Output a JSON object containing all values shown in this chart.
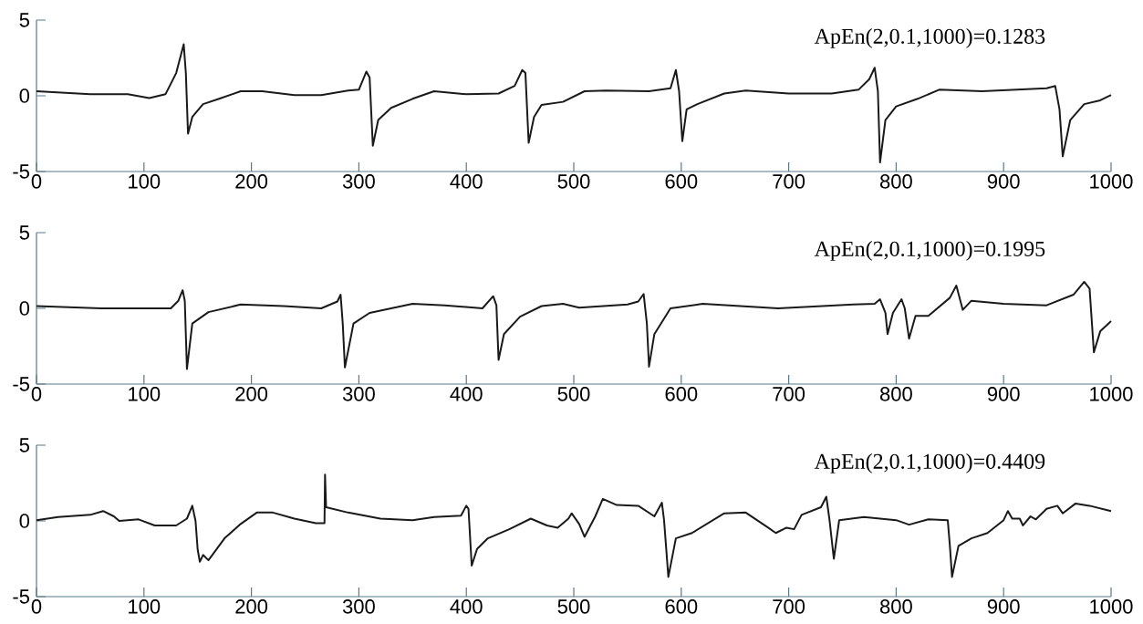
{
  "chart_data": [
    {
      "type": "line",
      "color": "#1a1a1a",
      "xlim": [
        0,
        1000
      ],
      "ylim": [
        -5,
        5
      ],
      "xticks": [
        0,
        100,
        200,
        300,
        400,
        500,
        600,
        700,
        800,
        900,
        1000
      ],
      "yticks": [
        -5,
        0,
        5
      ],
      "annotations": [
        "ApEn(2,0.1,1000)=0.1283"
      ],
      "x": [
        0,
        50,
        85,
        105,
        120,
        130,
        137,
        139,
        141,
        145,
        155,
        170,
        190,
        210,
        240,
        265,
        290,
        300,
        307,
        310,
        313,
        318,
        330,
        350,
        370,
        400,
        430,
        445,
        452,
        455,
        458,
        463,
        470,
        490,
        510,
        530,
        570,
        590,
        595,
        598,
        601,
        605,
        615,
        640,
        660,
        700,
        740,
        765,
        775,
        780,
        783,
        785,
        790,
        800,
        820,
        840,
        880,
        940,
        948,
        952,
        955,
        962,
        975,
        990,
        1000
      ],
      "values": [
        0.3,
        0.1,
        0.1,
        -0.15,
        0.1,
        1.5,
        3.4,
        1.5,
        -2.5,
        -1.4,
        -0.55,
        -0.2,
        0.3,
        0.3,
        0.05,
        0.05,
        0.35,
        0.4,
        1.6,
        1.2,
        -3.3,
        -1.6,
        -0.8,
        -0.2,
        0.3,
        0.1,
        0.15,
        0.65,
        1.7,
        1.5,
        -3.1,
        -1.4,
        -0.6,
        -0.4,
        0.3,
        0.35,
        0.3,
        0.5,
        1.7,
        0.3,
        -3.0,
        -0.9,
        -0.55,
        0.15,
        0.35,
        0.15,
        0.15,
        0.4,
        1.1,
        1.85,
        0.3,
        -4.4,
        -1.6,
        -0.7,
        -0.2,
        0.4,
        0.3,
        0.5,
        0.65,
        -0.9,
        -4.0,
        -1.6,
        -0.55,
        -0.3,
        0.05
      ]
    },
    {
      "type": "line",
      "color": "#1a1a1a",
      "xlim": [
        0,
        1000
      ],
      "ylim": [
        -5,
        5
      ],
      "xticks": [
        0,
        100,
        200,
        300,
        400,
        500,
        600,
        700,
        800,
        900,
        1000
      ],
      "yticks": [
        -5,
        0,
        5
      ],
      "annotations": [
        "ApEn(2,0.1,1000)=0.1995"
      ],
      "x": [
        0,
        60,
        125,
        132,
        136,
        138,
        140,
        145,
        160,
        190,
        230,
        265,
        280,
        283,
        285,
        287,
        295,
        310,
        350,
        380,
        415,
        425,
        428,
        430,
        435,
        450,
        470,
        490,
        505,
        550,
        560,
        565,
        568,
        570,
        575,
        590,
        620,
        690,
        760,
        780,
        785,
        790,
        792,
        797,
        805,
        808,
        812,
        818,
        830,
        850,
        856,
        862,
        870,
        900,
        940,
        965,
        975,
        980,
        984,
        990,
        1000
      ],
      "values": [
        0.15,
        0,
        0,
        0.5,
        1.2,
        0.5,
        -4.0,
        -1.0,
        -0.25,
        0.25,
        0.15,
        0,
        0.45,
        0.9,
        -1.0,
        -3.9,
        -1.0,
        -0.3,
        0.3,
        0.2,
        0,
        0.8,
        0.2,
        -3.4,
        -1.7,
        -0.55,
        0.15,
        0.3,
        0.05,
        0.25,
        0.45,
        0.95,
        -1.0,
        -3.85,
        -1.7,
        0,
        0.3,
        0,
        0.25,
        0.3,
        0.6,
        -0.3,
        -1.7,
        -0.3,
        0.6,
        0,
        -2.0,
        -0.5,
        -0.5,
        0.7,
        1.5,
        -0.1,
        0.5,
        0.3,
        0.2,
        0.9,
        1.75,
        1.3,
        -2.9,
        -1.5,
        -0.85
      ]
    },
    {
      "type": "line",
      "color": "#1a1a1a",
      "xlim": [
        0,
        1000
      ],
      "ylim": [
        -5,
        5
      ],
      "xticks": [
        0,
        100,
        200,
        300,
        400,
        500,
        600,
        700,
        800,
        900,
        1000
      ],
      "yticks": [
        -5,
        0,
        5
      ],
      "annotations": [
        "ApEn(2,0.1,1000)=0.4409"
      ],
      "x": [
        0,
        20,
        50,
        62,
        72,
        77,
        95,
        110,
        130,
        140,
        145,
        148,
        150,
        152,
        155,
        160,
        175,
        190,
        205,
        220,
        240,
        260,
        268,
        268.5,
        269.5,
        290,
        320,
        350,
        370,
        395,
        400,
        402,
        405,
        410,
        420,
        440,
        460,
        475,
        485,
        495,
        498,
        505,
        510,
        520,
        527,
        540,
        560,
        575,
        582,
        584,
        588,
        595,
        610,
        640,
        660,
        680,
        688,
        698,
        705,
        712,
        730,
        735,
        738,
        742,
        747,
        770,
        800,
        812,
        830,
        848,
        850,
        852,
        858,
        870,
        885,
        900,
        904,
        908,
        915,
        918,
        925,
        930,
        940,
        950,
        955,
        967,
        980,
        1000
      ],
      "values": [
        0.05,
        0.25,
        0.4,
        0.65,
        0.3,
        0,
        0.1,
        -0.3,
        -0.3,
        0.15,
        1.0,
        0,
        -1.9,
        -2.7,
        -2.25,
        -2.6,
        -1.15,
        -0.2,
        0.55,
        0.55,
        0.15,
        -0.15,
        -0.15,
        3.05,
        0.9,
        0.55,
        0.15,
        0.05,
        0.25,
        0.35,
        1.0,
        0.8,
        -2.95,
        -1.85,
        -1.15,
        -0.55,
        0.15,
        -0.3,
        -0.45,
        0.15,
        0.5,
        -0.2,
        -1.05,
        0.3,
        1.45,
        1.05,
        1.0,
        0.3,
        1.2,
        0.05,
        -3.7,
        -1.15,
        -0.8,
        0.5,
        0.55,
        -0.4,
        -0.8,
        -0.45,
        -0.55,
        0.4,
        0.9,
        1.6,
        0.05,
        -2.5,
        0.05,
        0.25,
        0.05,
        -0.25,
        0.1,
        0.05,
        -1.65,
        -3.7,
        -1.65,
        -1.15,
        -0.8,
        0.05,
        0.65,
        0.15,
        0.15,
        -0.3,
        0.3,
        0.1,
        0.8,
        1.0,
        0.5,
        1.15,
        1.0,
        0.65
      ]
    }
  ]
}
